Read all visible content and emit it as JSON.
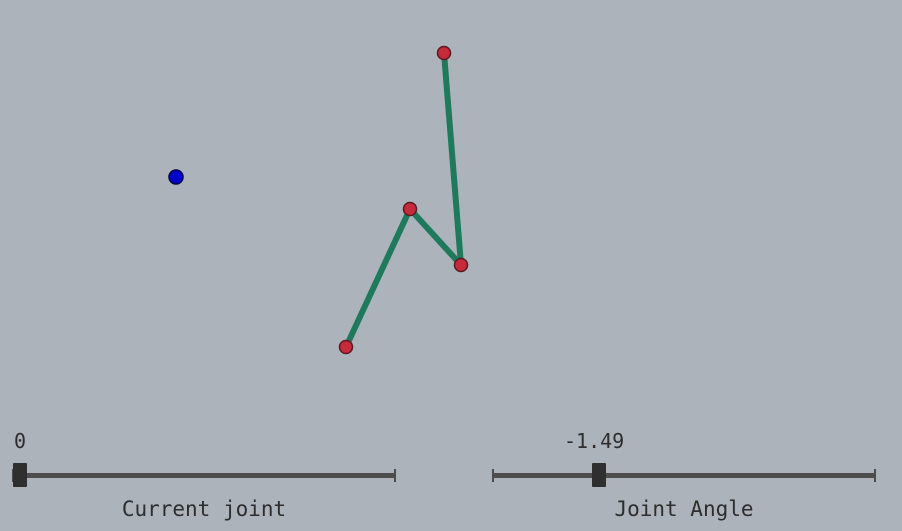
{
  "scene": {
    "background_color": "#acb3ba",
    "link_color": "#1f7a5c",
    "link_outline_color": "#1a3a2e",
    "joint_color": "#c72a3a",
    "joint_outline_color": "#5a1a20",
    "target_color": "#0000cc",
    "target_outline_color": "#000044"
  },
  "sliders": {
    "current_joint": {
      "label": "Current joint",
      "value_text": "0",
      "fraction": 0.0
    },
    "joint_angle": {
      "label": "Joint Angle",
      "value_text": "-1.49",
      "fraction": 0.27
    }
  }
}
